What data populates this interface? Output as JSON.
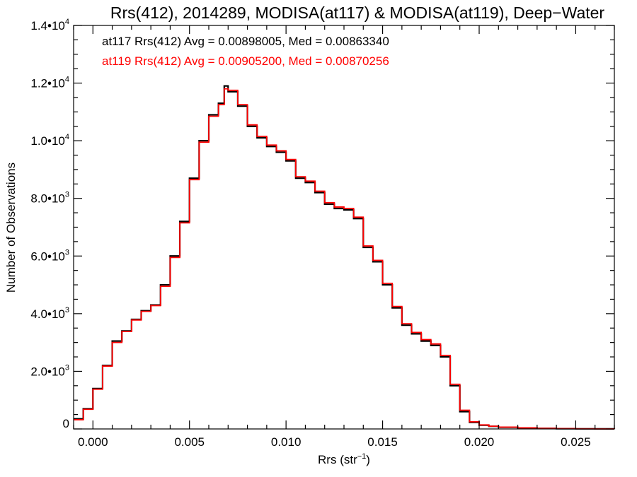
{
  "chart_data": {
    "type": "line",
    "title": "Rrs(412), 2014289, MODISA(at117) & MODISA(at119), Deep−Water",
    "xlabel_main": "Rrs (str",
    "xlabel_sup": "−1",
    "xlabel_end": ")",
    "ylabel": "Number of Observations",
    "xlim": [
      -0.001,
      0.027
    ],
    "ylim": [
      0,
      14000
    ],
    "x_ticks": [
      {
        "value": 0.0,
        "label": "0.000"
      },
      {
        "value": 0.005,
        "label": "0.005"
      },
      {
        "value": 0.01,
        "label": "0.010"
      },
      {
        "value": 0.015,
        "label": "0.015"
      },
      {
        "value": 0.02,
        "label": "0.020"
      },
      {
        "value": 0.025,
        "label": "0.025"
      }
    ],
    "y_ticks": [
      {
        "value": 0,
        "base": "0",
        "exp": ""
      },
      {
        "value": 2000,
        "base": "2.0•10",
        "exp": "3"
      },
      {
        "value": 4000,
        "base": "4.0•10",
        "exp": "3"
      },
      {
        "value": 6000,
        "base": "6.0•10",
        "exp": "3"
      },
      {
        "value": 8000,
        "base": "8.0•10",
        "exp": "3"
      },
      {
        "value": 10000,
        "base": "1.0•10",
        "exp": "4"
      },
      {
        "value": 12000,
        "base": "1.2•10",
        "exp": "4"
      },
      {
        "value": 14000,
        "base": "1.4•10",
        "exp": "4"
      }
    ],
    "legend": [
      {
        "text": "at117 Rrs(412) Avg = 0.00898005, Med = 0.00863340",
        "color": "#000000"
      },
      {
        "text": "at119 Rrs(412) Avg = 0.00905200, Med = 0.00870256",
        "color": "#ff0000"
      }
    ],
    "series": [
      {
        "color": "#000000",
        "x": [
          -0.001,
          -0.0005,
          0.0,
          0.0005,
          0.001,
          0.0015,
          0.002,
          0.0025,
          0.003,
          0.0035,
          0.004,
          0.0045,
          0.005,
          0.0055,
          0.006,
          0.0065,
          0.0068,
          0.007,
          0.0075,
          0.008,
          0.0085,
          0.009,
          0.0095,
          0.01,
          0.0105,
          0.011,
          0.0115,
          0.012,
          0.0125,
          0.013,
          0.0135,
          0.014,
          0.0145,
          0.015,
          0.0155,
          0.016,
          0.0165,
          0.017,
          0.0175,
          0.018,
          0.0185,
          0.019,
          0.0195,
          0.02,
          0.0205,
          0.021,
          0.022,
          0.023,
          0.024,
          0.025,
          0.026,
          0.027
        ],
        "y": [
          350,
          700,
          1400,
          2200,
          3050,
          3400,
          3800,
          4100,
          4300,
          5000,
          6000,
          7200,
          8700,
          10000,
          10900,
          11300,
          11900,
          11700,
          11200,
          10500,
          10100,
          9800,
          9600,
          9300,
          8700,
          8550,
          8200,
          7800,
          7650,
          7600,
          7300,
          6300,
          5800,
          5000,
          4200,
          3600,
          3300,
          3050,
          2900,
          2500,
          1500,
          600,
          230,
          130,
          90,
          60,
          35,
          20,
          10,
          5,
          3,
          2
        ]
      },
      {
        "color": "#ff0000",
        "x": [
          -0.001,
          -0.0005,
          0.0,
          0.0005,
          0.001,
          0.0015,
          0.002,
          0.0025,
          0.003,
          0.0035,
          0.004,
          0.0045,
          0.005,
          0.0055,
          0.006,
          0.0065,
          0.0068,
          0.007,
          0.0075,
          0.008,
          0.0085,
          0.009,
          0.0095,
          0.01,
          0.0105,
          0.011,
          0.0115,
          0.012,
          0.0125,
          0.013,
          0.0135,
          0.014,
          0.0145,
          0.015,
          0.0155,
          0.016,
          0.0165,
          0.017,
          0.0175,
          0.018,
          0.0185,
          0.019,
          0.0195,
          0.02,
          0.0205,
          0.021,
          0.022,
          0.023,
          0.024,
          0.025,
          0.026,
          0.027
        ],
        "y": [
          320,
          680,
          1380,
          2180,
          3000,
          3380,
          3780,
          4080,
          4280,
          4950,
          5950,
          7150,
          8650,
          9950,
          10850,
          11250,
          11800,
          11750,
          11250,
          10550,
          10150,
          9850,
          9650,
          9350,
          8750,
          8600,
          8250,
          7850,
          7700,
          7650,
          7350,
          6350,
          5850,
          5050,
          4250,
          3650,
          3350,
          3100,
          2950,
          2550,
          1550,
          650,
          250,
          140,
          95,
          65,
          38,
          22,
          11,
          6,
          3,
          2
        ]
      }
    ]
  }
}
